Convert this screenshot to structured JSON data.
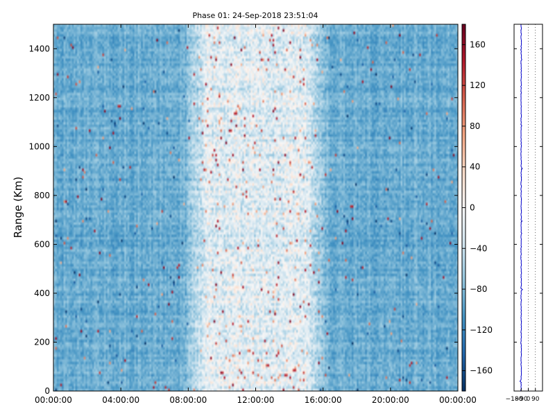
{
  "chart_data": [
    {
      "type": "heatmap",
      "title": "Phase 01: 24-Sep-2018 23:51:04",
      "xlabel": "",
      "ylabel": "Range (Km)",
      "xlim": [
        "00:00:00",
        "00:00:00"
      ],
      "x_ticks": [
        "00:00:00",
        "04:00:00",
        "08:00:00",
        "12:00:00",
        "16:00:00",
        "20:00:00",
        "00:00:00"
      ],
      "ylim": [
        0,
        1500
      ],
      "y_ticks": [
        0,
        200,
        400,
        600,
        800,
        1000,
        1200,
        1400
      ],
      "colorbar": {
        "vmin": -180,
        "vmax": 180,
        "ticks": [
          160,
          120,
          80,
          40,
          0,
          -40,
          -80,
          -120,
          -160
        ],
        "colormap": "RdBu_r"
      },
      "field_summary": {
        "background_phase": -90,
        "quiet_band_hours": [
          8.8,
          15.2
        ],
        "quiet_band_phase": -20
      },
      "grid": false
    },
    {
      "type": "line",
      "xlim": [
        -180,
        180
      ],
      "x_ticks": [
        "-180",
        "-90",
        "0",
        "90"
      ],
      "ylim": [
        0,
        1500
      ],
      "grid": true,
      "line_color": "#0000cc",
      "mean_phase": -90
    }
  ]
}
